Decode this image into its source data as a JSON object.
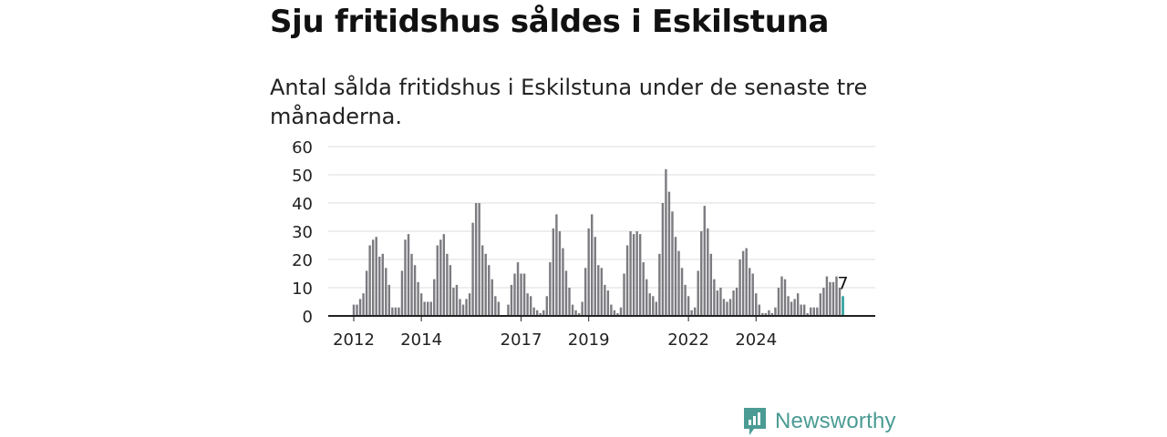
{
  "title": "Sju fritidshus såldes i Eskilstuna",
  "subtitle": "Antal sålda fritidshus i Eskilstuna under de senaste tre månaderna.",
  "brand": {
    "name": "Newsworthy",
    "icon": "newsworthy-logo-icon"
  },
  "colors": {
    "bar": "#7b7b80",
    "highlight": "#1f9a94",
    "brand": "#4a9b93",
    "grid": "#dddddd",
    "axis": "#222222"
  },
  "chart_data": {
    "type": "bar",
    "y_ticks": [
      "0",
      "10",
      "20",
      "30",
      "40",
      "50",
      "60"
    ],
    "ylim": [
      0,
      60
    ],
    "x_ticks": [
      {
        "label": "2012",
        "index": 0
      },
      {
        "label": "2014",
        "index": 21
      },
      {
        "label": "2017",
        "index": 52
      },
      {
        "label": "2019",
        "index": 73
      },
      {
        "label": "2022",
        "index": 104
      },
      {
        "label": "2024",
        "index": 125
      }
    ],
    "values": [
      4,
      4,
      6,
      8,
      16,
      25,
      27,
      28,
      21,
      22,
      17,
      11,
      3,
      3,
      3,
      16,
      27,
      29,
      22,
      18,
      12,
      8,
      5,
      5,
      5,
      13,
      25,
      27,
      29,
      22,
      18,
      10,
      11,
      6,
      4,
      6,
      8,
      33,
      40,
      40,
      25,
      22,
      18,
      13,
      7,
      5,
      0,
      0,
      4,
      11,
      15,
      19,
      15,
      15,
      8,
      7,
      3,
      2,
      1,
      2,
      7,
      19,
      31,
      36,
      30,
      24,
      16,
      10,
      4,
      2,
      1,
      5,
      17,
      31,
      36,
      28,
      18,
      17,
      11,
      9,
      4,
      2,
      1,
      3,
      15,
      25,
      30,
      29,
      30,
      29,
      19,
      13,
      8,
      7,
      5,
      22,
      40,
      52,
      44,
      37,
      28,
      23,
      17,
      11,
      7,
      2,
      3,
      16,
      30,
      39,
      31,
      22,
      13,
      9,
      10,
      6,
      5,
      6,
      9,
      10,
      20,
      23,
      24,
      17,
      15,
      8,
      4,
      1,
      1,
      2,
      1,
      3,
      10,
      14,
      13,
      7,
      5,
      6,
      8,
      4,
      4,
      1,
      3,
      3,
      3,
      8,
      10,
      14,
      12,
      12,
      14,
      10,
      7
    ],
    "highlight_index": 152,
    "last_value_label": "7"
  }
}
